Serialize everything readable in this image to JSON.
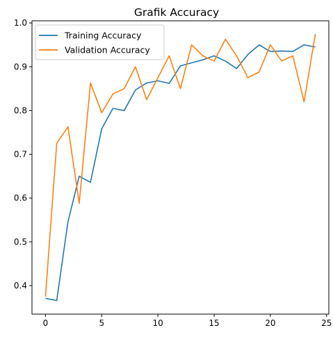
{
  "chart_data": {
    "type": "line",
    "title": "Grafik Accuracy",
    "xlabel": "",
    "ylabel": "",
    "xlim": [
      -1.2,
      25.2
    ],
    "ylim": [
      0.335,
      1.005
    ],
    "xticks": [
      0,
      5,
      10,
      15,
      20,
      25
    ],
    "yticks": [
      0.4,
      0.5,
      0.6,
      0.7,
      0.8,
      0.9,
      1.0
    ],
    "ytick_labels": [
      "0.4",
      "0.5",
      "0.6",
      "0.7",
      "0.8",
      "0.9",
      "1.0"
    ],
    "grid": false,
    "legend_position": "top-left",
    "x": [
      0,
      1,
      2,
      3,
      4,
      5,
      6,
      7,
      8,
      9,
      10,
      11,
      12,
      13,
      14,
      15,
      16,
      17,
      18,
      19,
      20,
      21,
      22,
      23,
      24
    ],
    "series": [
      {
        "name": "Training Accuracy",
        "color": "#1f77b4",
        "values": [
          0.371,
          0.366,
          0.546,
          0.65,
          0.636,
          0.758,
          0.805,
          0.8,
          0.847,
          0.863,
          0.868,
          0.862,
          0.902,
          0.909,
          0.916,
          0.925,
          0.913,
          0.896,
          0.928,
          0.95,
          0.935,
          0.936,
          0.935,
          0.95,
          0.945
        ]
      },
      {
        "name": "Validation Accuracy",
        "color": "#ff7f0e",
        "values": [
          0.375,
          0.725,
          0.763,
          0.588,
          0.863,
          0.795,
          0.838,
          0.85,
          0.9,
          0.825,
          0.875,
          0.925,
          0.85,
          0.95,
          0.925,
          0.913,
          0.963,
          0.925,
          0.875,
          0.888,
          0.95,
          0.913,
          0.925,
          0.82,
          0.975
        ]
      }
    ]
  }
}
